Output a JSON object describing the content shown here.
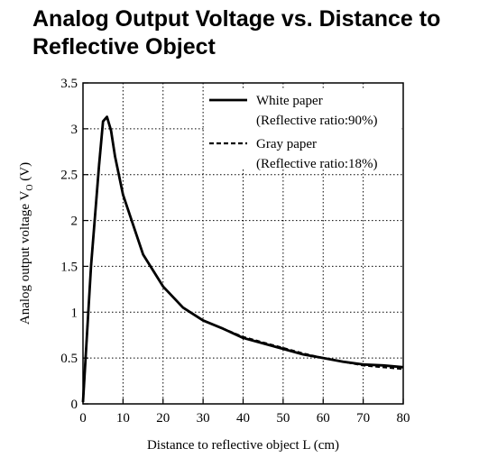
{
  "chart_data": {
    "type": "line",
    "title_line1": "Analog Output Voltage vs. Distance to",
    "title_line2": "Reflective Object",
    "xlabel": "Distance to reflective object L (cm)",
    "ylabel_main": "Analog output voltage V",
    "ylabel_sub": "O",
    "ylabel_unit": " (V)",
    "xlim": [
      0,
      80
    ],
    "ylim": [
      0,
      3.5
    ],
    "xticks": [
      "0",
      "10",
      "20",
      "30",
      "40",
      "50",
      "60",
      "70",
      "80"
    ],
    "yticks": [
      "0",
      "0.5",
      "1",
      "1.5",
      "2",
      "2.5",
      "3",
      "3.5"
    ],
    "grid": true,
    "legend_position": "top-right",
    "legend": [
      {
        "line1": "White paper",
        "line2": "(Reflective ratio:90%)",
        "style": "solid"
      },
      {
        "line1": "Gray paper",
        "line2": "(Reflective ratio:18%)",
        "style": "dashed"
      }
    ],
    "series": [
      {
        "style": "solid",
        "x": [
          0,
          2,
          4,
          5,
          6,
          7,
          8,
          10,
          15,
          20,
          25,
          30,
          35,
          40,
          45,
          50,
          55,
          60,
          65,
          70,
          75,
          80
        ],
        "y": [
          0.02,
          1.5,
          2.6,
          3.08,
          3.13,
          2.98,
          2.7,
          2.28,
          1.63,
          1.28,
          1.05,
          0.91,
          0.82,
          0.72,
          0.66,
          0.6,
          0.54,
          0.5,
          0.46,
          0.43,
          0.42,
          0.4
        ]
      },
      {
        "style": "dashed",
        "x": [
          0,
          2,
          4,
          5,
          6,
          7,
          8,
          10,
          15,
          20,
          25,
          30,
          35,
          40,
          45,
          50,
          55,
          60,
          65,
          70,
          75,
          80
        ],
        "y": [
          0.02,
          1.5,
          2.6,
          3.08,
          3.13,
          2.98,
          2.7,
          2.28,
          1.63,
          1.28,
          1.05,
          0.91,
          0.82,
          0.73,
          0.67,
          0.61,
          0.55,
          0.5,
          0.46,
          0.42,
          0.4,
          0.38
        ]
      }
    ]
  }
}
